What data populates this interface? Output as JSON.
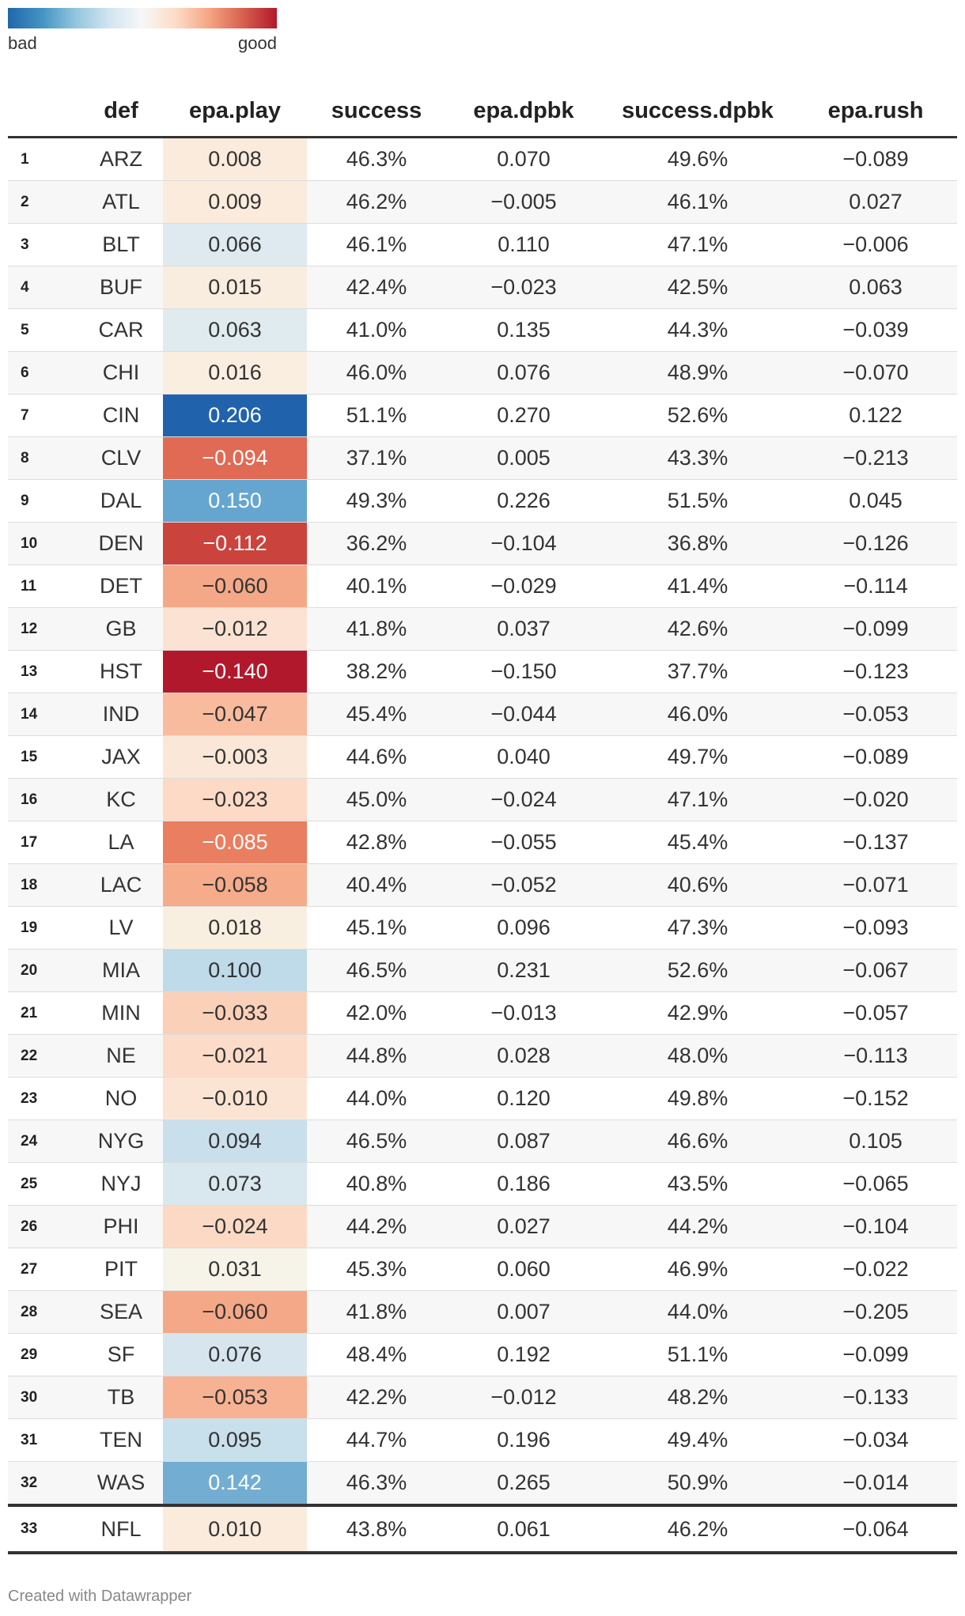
{
  "legend": {
    "low_label": "bad",
    "high_label": "good",
    "colors": [
      "#2166ac",
      "#f7f7f7",
      "#b2182b"
    ]
  },
  "footer": "Created with Datawrapper",
  "chart_data": {
    "type": "table",
    "columns": [
      "",
      "def",
      "epa.play",
      "success",
      "epa.dpbk",
      "success.dpbk",
      "epa.rush"
    ],
    "heat_column": "epa.play",
    "rows": [
      [
        "1",
        "ARZ",
        "0.008",
        "46.3%",
        "0.070",
        "49.6%",
        "−0.089"
      ],
      [
        "2",
        "ATL",
        "0.009",
        "46.2%",
        "−0.005",
        "46.1%",
        "0.027"
      ],
      [
        "3",
        "BLT",
        "0.066",
        "46.1%",
        "0.110",
        "47.1%",
        "−0.006"
      ],
      [
        "4",
        "BUF",
        "0.015",
        "42.4%",
        "−0.023",
        "42.5%",
        "0.063"
      ],
      [
        "5",
        "CAR",
        "0.063",
        "41.0%",
        "0.135",
        "44.3%",
        "−0.039"
      ],
      [
        "6",
        "CHI",
        "0.016",
        "46.0%",
        "0.076",
        "48.9%",
        "−0.070"
      ],
      [
        "7",
        "CIN",
        "0.206",
        "51.1%",
        "0.270",
        "52.6%",
        "0.122"
      ],
      [
        "8",
        "CLV",
        "−0.094",
        "37.1%",
        "0.005",
        "43.3%",
        "−0.213"
      ],
      [
        "9",
        "DAL",
        "0.150",
        "49.3%",
        "0.226",
        "51.5%",
        "0.045"
      ],
      [
        "10",
        "DEN",
        "−0.112",
        "36.2%",
        "−0.104",
        "36.8%",
        "−0.126"
      ],
      [
        "11",
        "DET",
        "−0.060",
        "40.1%",
        "−0.029",
        "41.4%",
        "−0.114"
      ],
      [
        "12",
        "GB",
        "−0.012",
        "41.8%",
        "0.037",
        "42.6%",
        "−0.099"
      ],
      [
        "13",
        "HST",
        "−0.140",
        "38.2%",
        "−0.150",
        "37.7%",
        "−0.123"
      ],
      [
        "14",
        "IND",
        "−0.047",
        "45.4%",
        "−0.044",
        "46.0%",
        "−0.053"
      ],
      [
        "15",
        "JAX",
        "−0.003",
        "44.6%",
        "0.040",
        "49.7%",
        "−0.089"
      ],
      [
        "16",
        "KC",
        "−0.023",
        "45.0%",
        "−0.024",
        "47.1%",
        "−0.020"
      ],
      [
        "17",
        "LA",
        "−0.085",
        "42.8%",
        "−0.055",
        "45.4%",
        "−0.137"
      ],
      [
        "18",
        "LAC",
        "−0.058",
        "40.4%",
        "−0.052",
        "40.6%",
        "−0.071"
      ],
      [
        "19",
        "LV",
        "0.018",
        "45.1%",
        "0.096",
        "47.3%",
        "−0.093"
      ],
      [
        "20",
        "MIA",
        "0.100",
        "46.5%",
        "0.231",
        "52.6%",
        "−0.067"
      ],
      [
        "21",
        "MIN",
        "−0.033",
        "42.0%",
        "−0.013",
        "42.9%",
        "−0.057"
      ],
      [
        "22",
        "NE",
        "−0.021",
        "44.8%",
        "0.028",
        "48.0%",
        "−0.113"
      ],
      [
        "23",
        "NO",
        "−0.010",
        "44.0%",
        "0.120",
        "49.8%",
        "−0.152"
      ],
      [
        "24",
        "NYG",
        "0.094",
        "46.5%",
        "0.087",
        "46.6%",
        "0.105"
      ],
      [
        "25",
        "NYJ",
        "0.073",
        "40.8%",
        "0.186",
        "43.5%",
        "−0.065"
      ],
      [
        "26",
        "PHI",
        "−0.024",
        "44.2%",
        "0.027",
        "44.2%",
        "−0.104"
      ],
      [
        "27",
        "PIT",
        "0.031",
        "45.3%",
        "0.060",
        "46.9%",
        "−0.022"
      ],
      [
        "28",
        "SEA",
        "−0.060",
        "41.8%",
        "0.007",
        "44.0%",
        "−0.205"
      ],
      [
        "29",
        "SF",
        "0.076",
        "48.4%",
        "0.192",
        "51.1%",
        "−0.099"
      ],
      [
        "30",
        "TB",
        "−0.053",
        "42.2%",
        "−0.012",
        "48.2%",
        "−0.133"
      ],
      [
        "31",
        "TEN",
        "0.095",
        "44.7%",
        "0.196",
        "49.4%",
        "−0.034"
      ],
      [
        "32",
        "WAS",
        "0.142",
        "46.3%",
        "0.265",
        "50.9%",
        "−0.014"
      ]
    ],
    "total_row": [
      "33",
      "NFL",
      "0.010",
      "43.8%",
      "0.061",
      "46.2%",
      "−0.064"
    ]
  }
}
